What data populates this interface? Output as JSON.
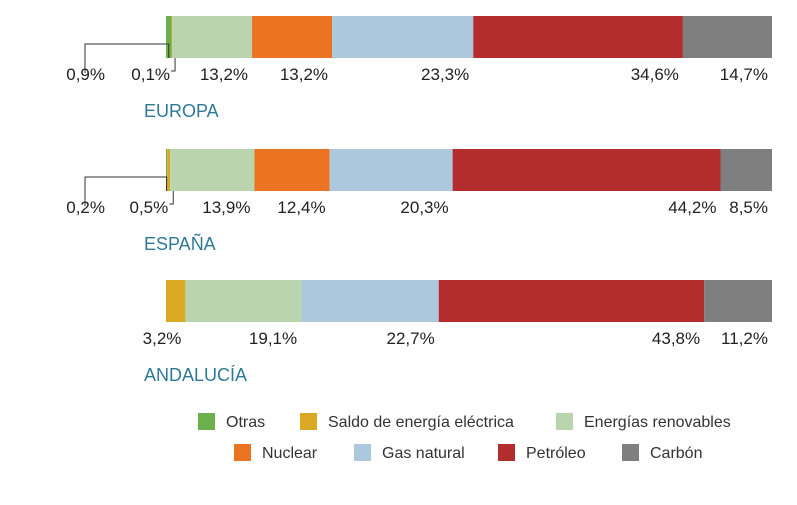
{
  "chart_data": {
    "type": "bar",
    "orientation": "horizontal-stacked-100",
    "title": "",
    "series": [
      {
        "key": "otras",
        "name": "Otras",
        "color": "#6ab04c"
      },
      {
        "key": "saldo",
        "name": "Saldo de energía eléctrica",
        "color": "#dba823"
      },
      {
        "key": "renovables",
        "name": "Energías renovables",
        "color": "#bad5ad"
      },
      {
        "key": "nuclear",
        "name": "Nuclear",
        "color": "#ec7322"
      },
      {
        "key": "gas",
        "name": "Gas natural",
        "color": "#abc8dc"
      },
      {
        "key": "petroleo",
        "name": "Petróleo",
        "color": "#b32d2e"
      },
      {
        "key": "carbon",
        "name": "Carbón",
        "color": "#7f7f7f"
      }
    ],
    "groups": [
      {
        "name": "EUROPA",
        "values": {
          "otras": 0.9,
          "saldo": 0.1,
          "renovables": 13.2,
          "nuclear": 13.2,
          "gas": 23.3,
          "petroleo": 34.6,
          "carbon": 14.7
        },
        "labels": {
          "otras": "0,9%",
          "saldo": "0,1%",
          "renovables": "13,2%",
          "nuclear": "13,2%",
          "gas": "23,3%",
          "petroleo": "34,6%",
          "carbon": "14,7%"
        }
      },
      {
        "name": "ESPAÑA",
        "values": {
          "otras": 0.2,
          "saldo": 0.5,
          "renovables": 13.9,
          "nuclear": 12.4,
          "gas": 20.3,
          "petroleo": 44.2,
          "carbon": 8.5
        },
        "labels": {
          "otras": "0,2%",
          "saldo": "0,5%",
          "renovables": "13,9%",
          "nuclear": "12,4%",
          "gas": "20,3%",
          "petroleo": "44,2%",
          "carbon": "8,5%"
        }
      },
      {
        "name": "ANDALUCÍA",
        "values": {
          "saldo": 3.2,
          "renovables": 19.1,
          "gas": 22.7,
          "petroleo": 43.8,
          "carbon": 11.2
        },
        "labels": {
          "saldo": "3,2%",
          "renovables": "19,1%",
          "gas": "22,7%",
          "petroleo": "43,8%",
          "carbon": "11,2%"
        }
      }
    ],
    "xlim": [
      0,
      100
    ],
    "legend": "bottom"
  }
}
